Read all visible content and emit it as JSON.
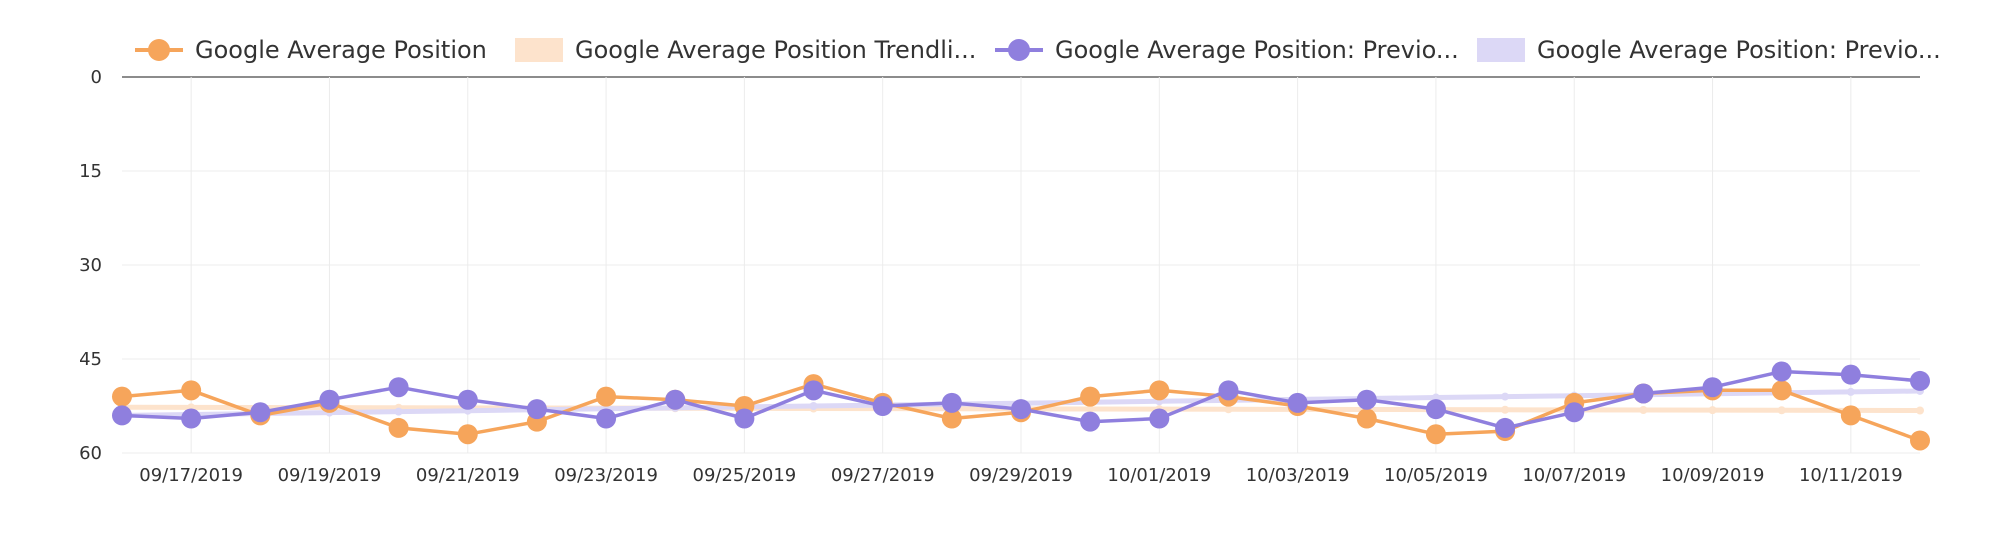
{
  "chart_data": {
    "type": "line",
    "title": "",
    "xlabel": "",
    "ylabel": "",
    "y_reversed": true,
    "ylim": [
      0,
      60
    ],
    "y_ticks": [
      0,
      15,
      30,
      45,
      60
    ],
    "grid": true,
    "legend_position": "top",
    "x": [
      "09/16/2019",
      "09/17/2019",
      "09/18/2019",
      "09/19/2019",
      "09/20/2019",
      "09/21/2019",
      "09/22/2019",
      "09/23/2019",
      "09/24/2019",
      "09/25/2019",
      "09/26/2019",
      "09/27/2019",
      "09/28/2019",
      "09/29/2019",
      "09/30/2019",
      "10/01/2019",
      "10/02/2019",
      "10/03/2019",
      "10/04/2019",
      "10/05/2019",
      "10/06/2019",
      "10/07/2019",
      "10/08/2019",
      "10/09/2019",
      "10/10/2019",
      "10/11/2019",
      "10/12/2019"
    ],
    "x_tick_labels": [
      "09/17/2019",
      "09/19/2019",
      "09/21/2019",
      "09/23/2019",
      "09/25/2019",
      "09/27/2019",
      "09/29/2019",
      "10/01/2019",
      "10/03/2019",
      "10/05/2019",
      "10/07/2019",
      "10/09/2019",
      "10/11/2019"
    ],
    "series": [
      {
        "name": "Google Average Position",
        "kind": "line",
        "color": "#f6a55b",
        "values": [
          51,
          50,
          54,
          52,
          56,
          57,
          55,
          51,
          51.5,
          52.5,
          49,
          52,
          54.5,
          53.5,
          51,
          50,
          51,
          52.5,
          54.5,
          57,
          56.5,
          52,
          50.5,
          50,
          50,
          54,
          58
        ]
      },
      {
        "name": "Google Average Position Trendli...",
        "kind": "trendline",
        "color": "#fde3cc",
        "values": [
          52.7,
          52.72,
          52.74,
          52.76,
          52.78,
          52.8,
          52.82,
          52.84,
          52.86,
          52.88,
          52.9,
          52.92,
          52.94,
          52.96,
          52.98,
          53.0,
          53.02,
          53.04,
          53.06,
          53.08,
          53.1,
          53.12,
          53.14,
          53.16,
          53.18,
          53.2,
          53.22
        ]
      },
      {
        "name": "Google Average Position: Previo...",
        "kind": "line",
        "color": "#8f7fde",
        "values": [
          54,
          54.5,
          53.5,
          51.5,
          49.5,
          51.5,
          53,
          54.5,
          51.5,
          54.5,
          50,
          52.5,
          52,
          53,
          55,
          54.5,
          50,
          52,
          51.5,
          53,
          56,
          53.5,
          50.5,
          49.5,
          47,
          47.5,
          48.5
        ]
      },
      {
        "name": "Google Average Position: Previo...",
        "kind": "trendline",
        "color": "#dcd8f6",
        "values": [
          54,
          53.85,
          53.7,
          53.55,
          53.4,
          53.25,
          53.1,
          52.95,
          52.8,
          52.65,
          52.5,
          52.35,
          52.2,
          52.05,
          51.9,
          51.75,
          51.6,
          51.45,
          51.3,
          51.15,
          51.0,
          50.85,
          50.7,
          50.55,
          50.4,
          50.25,
          50.1
        ]
      }
    ]
  }
}
